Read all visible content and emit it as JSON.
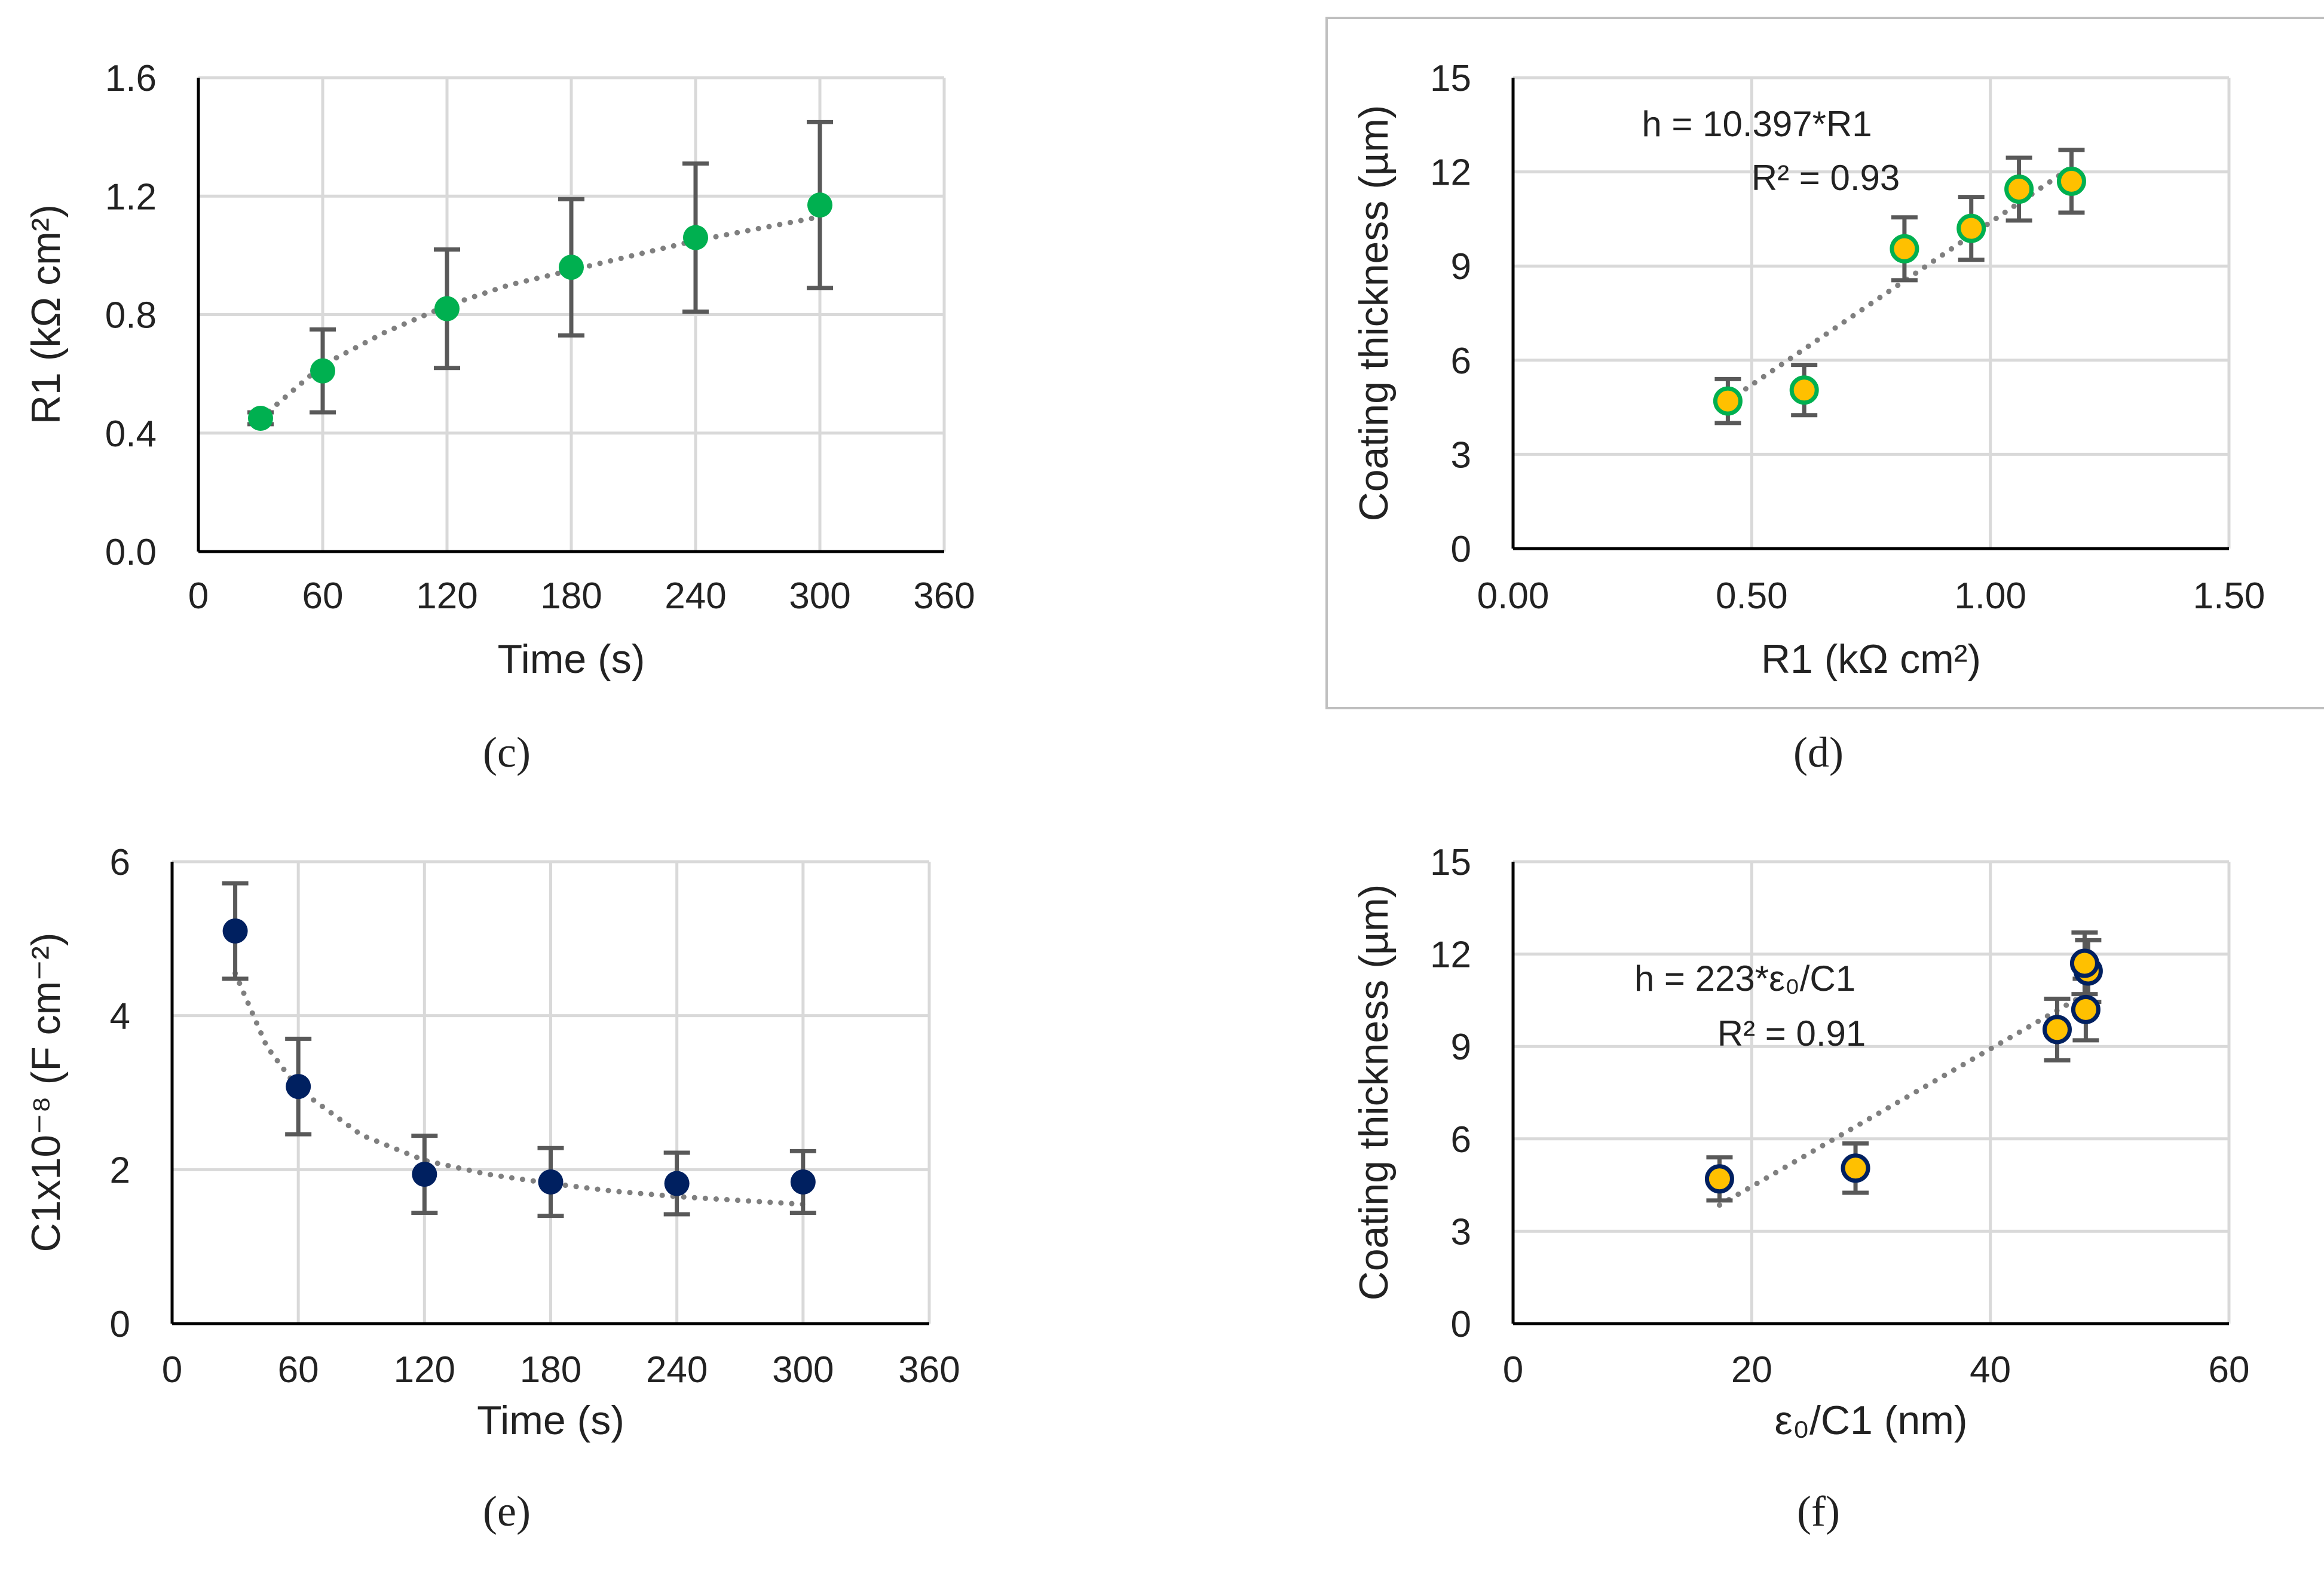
{
  "colors": {
    "grid": "#d9d9d9",
    "axis": "#000000",
    "error_bar": "#595959",
    "trend": "#7f7f7f",
    "marker_green": "#00b050",
    "marker_navy": "#002060",
    "marker_gold": "#ffc000"
  },
  "chart_data": [
    {
      "id": "c",
      "type": "scatter",
      "panel_label": "(c)",
      "xlabel": "Time (s)",
      "ylabel": "R1 (kΩ cm²)",
      "xlim": [
        0,
        360
      ],
      "ylim": [
        0,
        1.6
      ],
      "xticks": [
        "0",
        "60",
        "120",
        "180",
        "240",
        "300",
        "360"
      ],
      "yticks": [
        "0.0",
        "0.4",
        "0.8",
        "1.2",
        "1.6"
      ],
      "x": [
        30,
        60,
        120,
        180,
        240,
        300
      ],
      "y": [
        0.45,
        0.61,
        0.82,
        0.96,
        1.06,
        1.17
      ],
      "error": [
        0.02,
        0.14,
        0.2,
        0.23,
        0.25,
        0.28
      ],
      "trendline": "logarithmic",
      "trend_points": [
        [
          30,
          0.45
        ],
        [
          60,
          0.63
        ],
        [
          90,
          0.74
        ],
        [
          120,
          0.83
        ],
        [
          150,
          0.9
        ],
        [
          180,
          0.95
        ],
        [
          210,
          1.0
        ],
        [
          240,
          1.05
        ],
        [
          270,
          1.09
        ],
        [
          300,
          1.13
        ]
      ],
      "marker": "green"
    },
    {
      "id": "d",
      "type": "scatter",
      "panel_label": "(d)",
      "xlabel": "R1 (kΩ cm²)",
      "ylabel": "Coating thickness (µm)",
      "xlim": [
        0,
        1.5
      ],
      "ylim": [
        0,
        15
      ],
      "xticks": [
        "0.00",
        "0.50",
        "1.00",
        "1.50"
      ],
      "yticks": [
        "0",
        "3",
        "6",
        "9",
        "12",
        "15"
      ],
      "x": [
        0.45,
        0.61,
        0.82,
        0.96,
        1.06,
        1.17
      ],
      "y": [
        4.7,
        5.05,
        9.55,
        10.2,
        11.45,
        11.7
      ],
      "error": [
        0.7,
        0.8,
        1.0,
        1.0,
        1.0,
        1.0
      ],
      "trendline": "linear",
      "trend_points": [
        [
          0.45,
          4.7
        ],
        [
          1.17,
          12.15
        ]
      ],
      "annotation": [
        "h = 10.397*R1",
        "R² = 0.93"
      ],
      "marker": "gold-green"
    },
    {
      "id": "e",
      "type": "scatter",
      "panel_label": "(e)",
      "xlabel": "Time (s)",
      "ylabel": "C1x10⁻⁸ (F cm⁻²)",
      "xlim": [
        0,
        360
      ],
      "ylim": [
        0,
        6
      ],
      "xticks": [
        "0",
        "60",
        "120",
        "180",
        "240",
        "300",
        "360"
      ],
      "yticks": [
        "0",
        "2",
        "4",
        "6"
      ],
      "x": [
        30,
        60,
        120,
        180,
        240,
        300
      ],
      "y": [
        5.1,
        3.08,
        1.94,
        1.84,
        1.82,
        1.84
      ],
      "error": [
        0.62,
        0.62,
        0.5,
        0.44,
        0.4,
        0.4
      ],
      "trendline": "power",
      "trend_points": [
        [
          30,
          4.55
        ],
        [
          45,
          3.6
        ],
        [
          60,
          3.05
        ],
        [
          90,
          2.45
        ],
        [
          120,
          2.12
        ],
        [
          150,
          1.94
        ],
        [
          180,
          1.82
        ],
        [
          210,
          1.72
        ],
        [
          240,
          1.65
        ],
        [
          270,
          1.6
        ],
        [
          300,
          1.55
        ]
      ],
      "marker": "navy"
    },
    {
      "id": "f",
      "type": "scatter",
      "panel_label": "(f)",
      "xlabel": "ε₀/C1 (nm)",
      "ylabel": "Coating thickness (µm)",
      "xlim": [
        0,
        60
      ],
      "ylim": [
        0,
        15
      ],
      "xticks": [
        "0",
        "20",
        "40",
        "60"
      ],
      "yticks": [
        "0",
        "3",
        "6",
        "9",
        "12",
        "15"
      ],
      "x": [
        17.3,
        28.7,
        45.6,
        48.0,
        48.2,
        47.9
      ],
      "y": [
        4.7,
        5.05,
        9.55,
        10.2,
        11.45,
        11.7
      ],
      "error": [
        0.7,
        0.8,
        1.0,
        1.0,
        1.0,
        1.0
      ],
      "trendline": "linear",
      "trend_points": [
        [
          17.3,
          3.85
        ],
        [
          48.2,
          10.75
        ]
      ],
      "annotation": [
        "h = 223*ε₀/C1",
        "R² = 0.91"
      ],
      "marker": "gold-navy"
    }
  ]
}
